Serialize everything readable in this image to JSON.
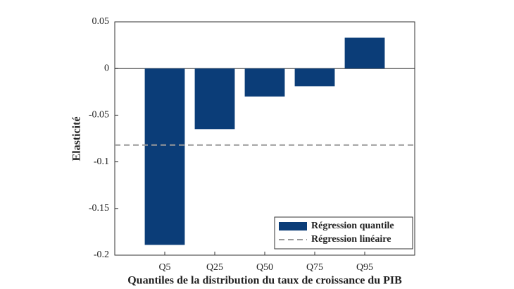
{
  "chart_data": {
    "type": "bar",
    "xlabel": "Quantiles de la distribution du taux de croissance du PIB",
    "ylabel": "Elasticité",
    "categories": [
      "Q5",
      "Q25",
      "Q50",
      "Q75",
      "Q95"
    ],
    "series": [
      {
        "name": "Régression quantile",
        "color": "#0b3d78",
        "values": [
          -0.189,
          -0.065,
          -0.03,
          -0.019,
          0.033
        ]
      }
    ],
    "reference_line": {
      "name": "Régression linéaire",
      "value": -0.082,
      "color": "#999999",
      "style": "dashed"
    },
    "ylim": [
      -0.2,
      0.05
    ],
    "yticks": [
      -0.2,
      -0.15,
      -0.1,
      -0.05,
      0,
      0.05
    ],
    "legend": "lower right"
  }
}
